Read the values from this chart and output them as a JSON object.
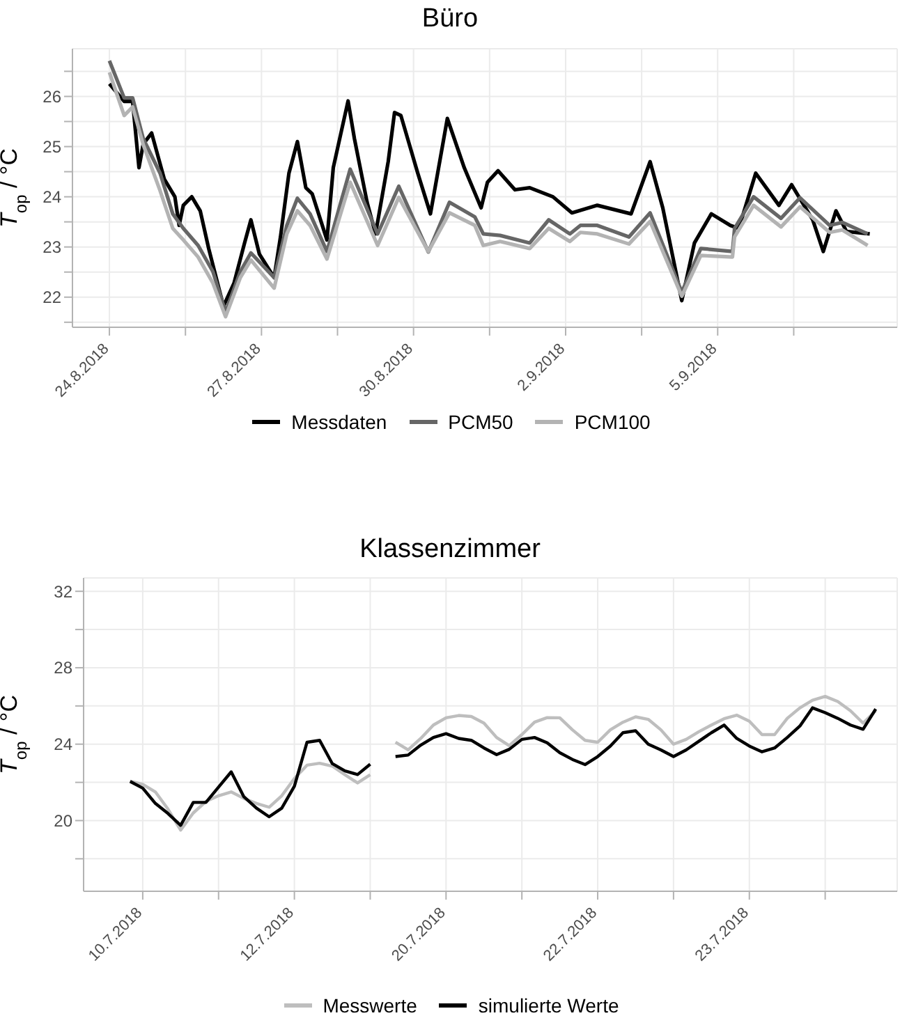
{
  "chart_data": [
    {
      "type": "line",
      "title": "Büro",
      "ylabel": "T$_{op}$ / °C",
      "xlim": [
        "2018-08-23T06:30",
        "2018-09-08T13:00"
      ],
      "ylim": [
        21.4,
        26.95
      ],
      "xticks": [
        {
          "value": "2018-08-24",
          "label": "24.8.2018"
        },
        {
          "value": "2018-08-25T12:00",
          "label": null
        },
        {
          "value": "2018-08-27",
          "label": "27.8.2018"
        },
        {
          "value": "2018-08-28T12:00",
          "label": null
        },
        {
          "value": "2018-08-30",
          "label": "30.8.2018"
        },
        {
          "value": "2018-08-31T12:00",
          "label": null
        },
        {
          "value": "2018-09-02",
          "label": "2.9.2018"
        },
        {
          "value": "2018-09-03T12:00",
          "label": null
        },
        {
          "value": "2018-09-05",
          "label": "5.9.2018"
        },
        {
          "value": "2018-09-06T12:00",
          "label": null
        }
      ],
      "yticks": [
        {
          "value": 21.5,
          "label": null
        },
        22,
        {
          "value": 22.5,
          "label": null
        },
        23,
        {
          "value": 23.5,
          "label": null
        },
        24,
        {
          "value": 24.5,
          "label": null
        },
        25,
        {
          "value": 25.5,
          "label": null
        },
        26,
        {
          "value": 26.5,
          "label": null
        }
      ],
      "grid": true,
      "legend": "bottom",
      "series": [
        {
          "name": "Messdaten",
          "color": "#000000",
          "x": [
            "2018-08-24T00:00",
            "2018-08-24T07:00",
            "2018-08-24T11:00",
            "2018-08-24T14:00",
            "2018-08-24T16:00",
            "2018-08-24T20:00",
            "2018-08-25T02:00",
            "2018-08-25T07:00",
            "2018-08-25T09:00",
            "2018-08-25T11:00",
            "2018-08-25T15:00",
            "2018-08-25T19:00",
            "2018-08-25T23:00",
            "2018-08-26T06:00",
            "2018-08-26T11:00",
            "2018-08-26T16:00",
            "2018-08-26T19:00",
            "2018-08-26T23:00",
            "2018-08-27T06:00",
            "2018-08-27T09:00",
            "2018-08-27T13:00",
            "2018-08-27T17:00",
            "2018-08-27T21:00",
            "2018-08-28T00:00",
            "2018-08-28T07:00",
            "2018-08-28T10:00",
            "2018-08-28T17:00",
            "2018-08-28T20:00",
            "2018-08-29T02:00",
            "2018-08-29T06:00",
            "2018-08-29T12:00",
            "2018-08-29T15:00",
            "2018-08-29T18:00",
            "2018-08-30T02:00",
            "2018-08-30T08:00",
            "2018-08-30T16:00",
            "2018-08-31T00:00",
            "2018-08-31T08:00",
            "2018-08-31T11:00",
            "2018-08-31T16:00",
            "2018-09-01T00:00",
            "2018-09-01T07:00",
            "2018-09-01T18:00",
            "2018-09-02T03:00",
            "2018-09-02T15:00",
            "2018-09-03T07:00",
            "2018-09-03T16:00",
            "2018-09-03T22:00",
            "2018-09-04T07:00",
            "2018-09-04T13:00",
            "2018-09-04T21:00",
            "2018-09-05T06:00",
            "2018-09-05T10:00",
            "2018-09-05T18:00",
            "2018-09-06T05:00",
            "2018-09-06T11:00",
            "2018-09-06T21:00",
            "2018-09-07T02:00",
            "2018-09-07T08:00",
            "2018-09-07T13:00",
            "2018-09-08T00:00"
          ],
          "values": [
            26.25,
            25.9,
            25.9,
            24.58,
            25.05,
            25.27,
            24.35,
            24.0,
            23.43,
            23.83,
            24.0,
            23.72,
            22.97,
            21.82,
            22.28,
            23.08,
            23.54,
            22.86,
            22.39,
            23.2,
            24.47,
            25.1,
            24.18,
            24.06,
            23.14,
            24.58,
            25.91,
            25.16,
            23.89,
            23.26,
            24.7,
            25.68,
            25.62,
            24.47,
            23.66,
            25.56,
            24.58,
            23.78,
            24.29,
            24.52,
            24.14,
            24.18,
            24.0,
            23.68,
            23.83,
            23.66,
            24.7,
            23.78,
            21.93,
            23.08,
            23.66,
            23.43,
            23.37,
            24.47,
            23.83,
            24.24,
            23.54,
            22.91,
            23.72,
            23.31,
            23.26
          ]
        },
        {
          "name": "PCM50",
          "color": "#666666",
          "x": [
            "2018-08-24T00:00",
            "2018-08-24T07:00",
            "2018-08-24T11:00",
            "2018-08-24T16:00",
            "2018-08-25T00:00",
            "2018-08-25T06:00",
            "2018-08-25T11:00",
            "2018-08-25T18:00",
            "2018-08-26T01:00",
            "2018-08-26T07:00",
            "2018-08-26T14:00",
            "2018-08-26T19:00",
            "2018-08-27T06:00",
            "2018-08-27T12:00",
            "2018-08-27T17:00",
            "2018-08-27T23:00",
            "2018-08-28T07:00",
            "2018-08-28T18:00",
            "2018-08-29T07:00",
            "2018-08-29T17:00",
            "2018-08-30T07:00",
            "2018-08-30T17:00",
            "2018-08-31T05:00",
            "2018-08-31T09:00",
            "2018-08-31T17:00",
            "2018-09-01T07:00",
            "2018-09-01T16:00",
            "2018-09-02T02:00",
            "2018-09-02T07:00",
            "2018-09-02T15:00",
            "2018-09-03T06:00",
            "2018-09-03T16:00",
            "2018-09-04T07:00",
            "2018-09-04T16:00",
            "2018-09-05T07:00",
            "2018-09-05T08:00",
            "2018-09-05T17:00",
            "2018-09-06T06:00",
            "2018-09-06T15:00",
            "2018-09-07T05:00",
            "2018-09-07T11:00",
            "2018-09-07T23:00"
          ],
          "values": [
            26.71,
            25.97,
            25.97,
            25.16,
            24.47,
            23.66,
            23.37,
            23.03,
            22.51,
            21.7,
            22.51,
            22.88,
            22.39,
            23.43,
            23.97,
            23.66,
            22.91,
            24.55,
            23.26,
            24.21,
            22.9,
            23.89,
            23.6,
            23.26,
            23.23,
            23.08,
            23.54,
            23.26,
            23.43,
            23.43,
            23.2,
            23.68,
            22.1,
            22.97,
            22.91,
            23.37,
            24.0,
            23.57,
            23.98,
            23.43,
            23.49,
            23.26
          ]
        },
        {
          "name": "PCM100",
          "color": "#b3b3b3",
          "x": [
            "2018-08-24T00:00",
            "2018-08-24T07:00",
            "2018-08-24T11:00",
            "2018-08-24T16:00",
            "2018-08-25T00:00",
            "2018-08-25T06:00",
            "2018-08-25T11:00",
            "2018-08-25T18:00",
            "2018-08-26T01:00",
            "2018-08-26T07:00",
            "2018-08-26T14:00",
            "2018-08-26T19:00",
            "2018-08-27T06:00",
            "2018-08-27T12:00",
            "2018-08-27T17:00",
            "2018-08-27T23:00",
            "2018-08-28T07:00",
            "2018-08-28T18:00",
            "2018-08-29T07:00",
            "2018-08-29T17:00",
            "2018-08-30T07:00",
            "2018-08-30T17:00",
            "2018-08-31T05:00",
            "2018-08-31T09:00",
            "2018-08-31T17:00",
            "2018-09-01T07:00",
            "2018-09-01T16:00",
            "2018-09-02T02:00",
            "2018-09-02T07:00",
            "2018-09-02T15:00",
            "2018-09-03T06:00",
            "2018-09-03T16:00",
            "2018-09-04T07:00",
            "2018-09-04T16:00",
            "2018-09-05T07:00",
            "2018-09-05T08:00",
            "2018-09-05T17:00",
            "2018-09-06T06:00",
            "2018-09-06T15:00",
            "2018-09-07T05:00",
            "2018-09-07T11:00",
            "2018-09-07T23:00"
          ],
          "values": [
            26.48,
            25.62,
            25.79,
            25.04,
            24.12,
            23.37,
            23.14,
            22.8,
            22.28,
            21.61,
            22.39,
            22.74,
            22.18,
            23.26,
            23.72,
            23.43,
            22.76,
            24.29,
            23.03,
            23.99,
            22.91,
            23.68,
            23.43,
            23.03,
            23.11,
            22.97,
            23.37,
            23.11,
            23.29,
            23.26,
            23.06,
            23.51,
            22.02,
            22.83,
            22.8,
            23.2,
            23.83,
            23.4,
            23.8,
            23.29,
            23.34,
            23.03
          ]
        }
      ]
    },
    {
      "type": "line",
      "title": "Klassenzimmer",
      "ylabel": "T$_{op}$ / °C",
      "ylim": [
        16.3,
        32.7
      ],
      "categories": [
        null,
        "10.7.2018",
        null,
        null,
        null,
        null,
        null,
        null,
        null,
        null,
        null,
        null,
        null,
        "12.7.2018",
        null,
        null,
        null,
        null,
        null,
        null,
        null,
        null,
        null,
        null,
        null,
        "20.7.2018",
        null,
        null,
        null,
        null,
        null,
        null,
        null,
        null,
        null,
        null,
        null,
        "22.7.2018",
        null,
        null,
        null,
        null,
        null,
        null,
        null,
        null,
        null,
        null,
        null,
        "23.7.2018",
        null,
        null,
        null,
        null,
        null,
        null,
        null,
        null,
        null,
        null
      ],
      "yticks": [
        {
          "value": 18,
          "label": null
        },
        20,
        {
          "value": 22,
          "label": null
        },
        24,
        {
          "value": 26,
          "label": null
        },
        28,
        {
          "value": 30,
          "label": null
        },
        32
      ],
      "grid": true,
      "legend": "bottom",
      "series": [
        {
          "name": "Messwerte",
          "color": "#bebebe",
          "values": [
            22.06,
            21.9,
            21.5,
            20.6,
            19.5,
            20.4,
            21.0,
            21.3,
            21.5,
            21.16,
            20.9,
            20.7,
            21.3,
            22.2,
            22.9,
            23.0,
            22.85,
            22.4,
            21.97,
            22.4,
            null,
            24.1,
            23.7,
            24.3,
            25.0,
            25.38,
            25.5,
            25.45,
            25.1,
            24.35,
            23.92,
            24.5,
            25.15,
            25.39,
            25.38,
            24.75,
            24.2,
            24.1,
            24.75,
            25.15,
            25.43,
            25.3,
            24.75,
            24.0,
            24.25,
            24.65,
            25.0,
            25.33,
            25.52,
            25.2,
            24.5,
            24.5,
            25.35,
            25.9,
            26.3,
            26.5,
            26.23,
            25.75,
            25.1,
            25.75
          ]
        },
        {
          "name": "simulierte Werte",
          "color": "#000000",
          "values": [
            22.05,
            21.7,
            20.9,
            20.37,
            19.75,
            20.95,
            20.95,
            21.75,
            22.55,
            21.25,
            20.65,
            20.2,
            20.65,
            21.8,
            24.1,
            24.2,
            22.98,
            22.6,
            22.41,
            22.95,
            null,
            23.35,
            23.43,
            23.95,
            24.35,
            24.55,
            24.3,
            24.2,
            23.8,
            23.45,
            23.73,
            24.25,
            24.35,
            24.07,
            23.55,
            23.2,
            22.93,
            23.35,
            23.9,
            24.6,
            24.7,
            24.0,
            23.7,
            23.35,
            23.7,
            24.15,
            24.6,
            25.0,
            24.3,
            23.9,
            23.6,
            23.8,
            24.35,
            24.95,
            25.9,
            25.65,
            25.35,
            25.0,
            24.78,
            25.84
          ]
        }
      ]
    }
  ]
}
